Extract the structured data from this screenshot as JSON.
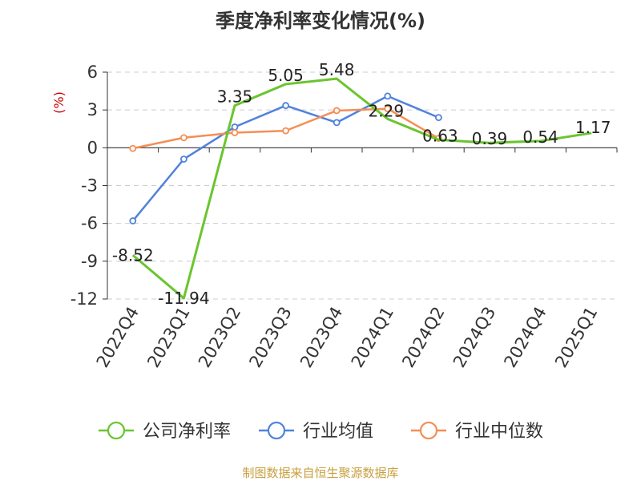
{
  "chart_data": {
    "type": "line",
    "title": "季度净利率变化情况(%)",
    "ylabel": "(%)",
    "xlabel": "",
    "categories": [
      "2022Q4",
      "2023Q1",
      "2023Q2",
      "2023Q3",
      "2023Q4",
      "2024Q1",
      "2024Q2",
      "2024Q3",
      "2024Q4",
      "2025Q1"
    ],
    "yticks": [
      "6",
      "3",
      "0",
      "-3",
      "-6",
      "-9",
      "-12"
    ],
    "ylim": [
      -12,
      6
    ],
    "grid": true,
    "legend_position": "bottom",
    "series": [
      {
        "name": "公司净利率",
        "color": "#6ac52f",
        "values": [
          -8.52,
          -11.94,
          3.35,
          5.05,
          5.48,
          2.29,
          0.63,
          0.39,
          0.54,
          1.17
        ],
        "labels": [
          "-8.52",
          "-11.94",
          "3.35",
          "5.05",
          "5.48",
          "2.29",
          "0.63",
          "0.39",
          "0.54",
          "1.17"
        ]
      },
      {
        "name": "行业均值",
        "color": "#4f82dc",
        "values": [
          -5.8,
          -0.9,
          1.65,
          3.35,
          2.0,
          4.1,
          2.4,
          null,
          null,
          null
        ]
      },
      {
        "name": "行业中位数",
        "color": "#f58e55",
        "values": [
          -0.05,
          0.8,
          1.2,
          1.35,
          2.95,
          3.1,
          0.75,
          null,
          null,
          null
        ]
      }
    ]
  },
  "footer": {
    "source": "制图数据来自恒生聚源数据库"
  }
}
